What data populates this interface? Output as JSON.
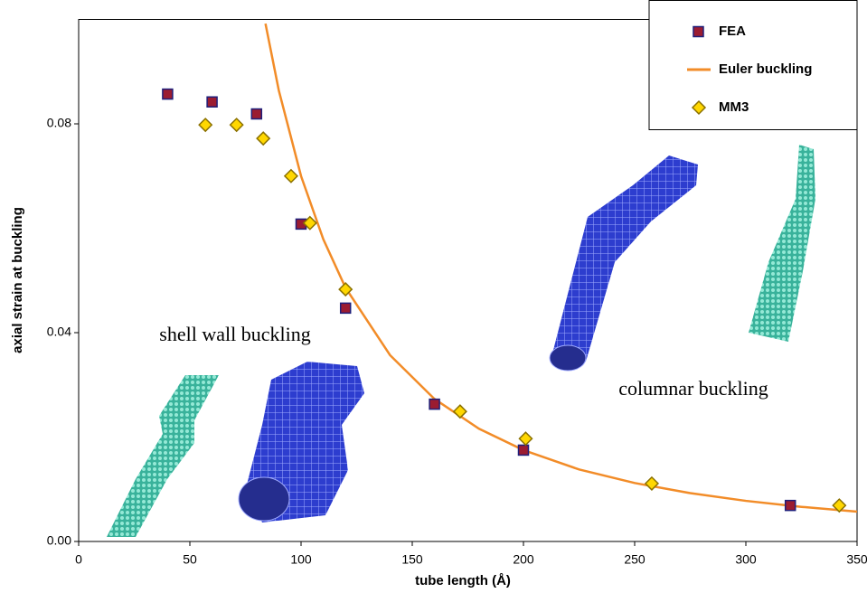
{
  "chart_data": {
    "type": "scatter",
    "xlabel": "tube length (Å)",
    "ylabel": "axial strain at buckling",
    "xlim": [
      0,
      350
    ],
    "ylim": [
      0,
      0.1
    ],
    "xticks": [
      0,
      50,
      100,
      150,
      200,
      250,
      300,
      350
    ],
    "yticks": [
      {
        "value": 0,
        "label": "0.00"
      },
      0.04,
      0.08
    ],
    "grid": false,
    "legend": "top right",
    "annotations": [
      "shell wall buckling",
      "columnar buckling"
    ],
    "series": [
      {
        "name": "FEA",
        "marker": "square",
        "color": "#9b1c31",
        "edge": "#1f1f7a",
        "x": [
          40,
          60,
          80,
          100,
          120,
          160,
          200,
          320
        ],
        "values": [
          0.0857,
          0.0842,
          0.0819,
          0.0608,
          0.0447,
          0.0263,
          0.0175,
          0.0069
        ]
      },
      {
        "name": "Euler buckling",
        "marker": "line",
        "color": "#f28c28",
        "x": [
          84,
          90,
          100,
          110,
          120,
          140,
          160,
          180,
          200,
          225,
          250,
          275,
          300,
          325,
          350
        ],
        "values": [
          0.0992,
          0.0864,
          0.07,
          0.0579,
          0.0486,
          0.0357,
          0.0273,
          0.0216,
          0.0175,
          0.0138,
          0.0112,
          0.00926,
          0.00778,
          0.00663,
          0.00571
        ]
      },
      {
        "name": "MM3",
        "marker": "diamond",
        "color": "#ffd700",
        "edge": "#8a7000",
        "x": [
          57,
          71,
          83,
          95.5,
          104,
          120,
          171.5,
          201,
          257.7,
          342
        ],
        "values": [
          0.0798,
          0.0798,
          0.0772,
          0.07,
          0.061,
          0.0483,
          0.0249,
          0.0197,
          0.0111,
          0.0069
        ]
      }
    ]
  }
}
